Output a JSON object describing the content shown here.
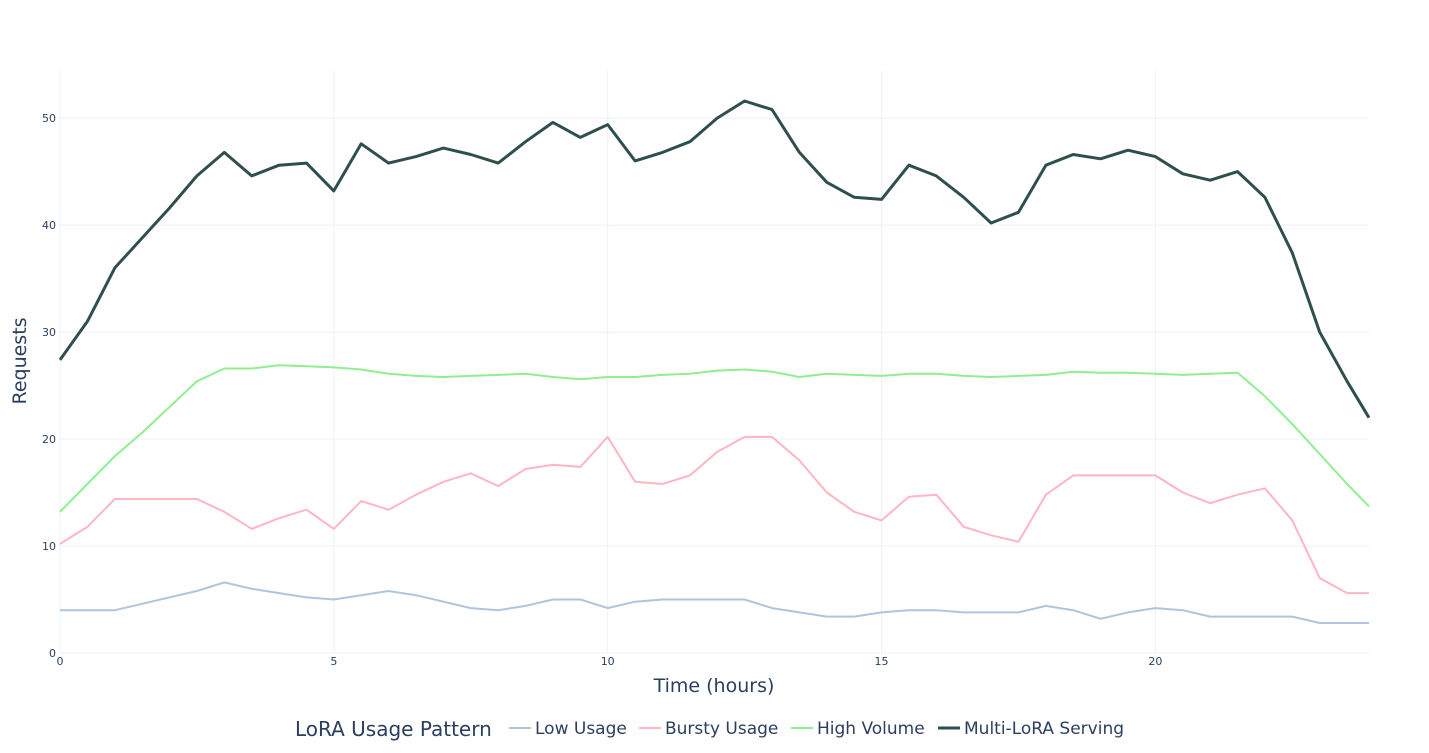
{
  "chart_data": {
    "type": "line",
    "xlabel": "Time (hours)",
    "ylabel": "Requests",
    "xlim": [
      0,
      23.9
    ],
    "ylim": [
      0,
      54.5
    ],
    "x_ticks": [
      0,
      5,
      10,
      15,
      20
    ],
    "y_ticks": [
      0,
      10,
      20,
      30,
      40,
      50
    ],
    "grid": true,
    "legend": {
      "title": "LoRA Usage Pattern",
      "position": "bottom"
    },
    "x": [
      0,
      0.5,
      1,
      1.5,
      2,
      2.5,
      3,
      3.5,
      4,
      4.5,
      5,
      5.5,
      6,
      6.5,
      7,
      7.5,
      8,
      8.5,
      9,
      9.5,
      10,
      10.5,
      11,
      11.5,
      12,
      12.5,
      13,
      13.5,
      14,
      14.5,
      15,
      15.5,
      16,
      16.5,
      17,
      17.5,
      18,
      18.5,
      19,
      19.5,
      20,
      20.5,
      21,
      21.5,
      22,
      22.5,
      23,
      23.5,
      23.9
    ],
    "series": [
      {
        "name": "Low Usage",
        "color": "#b0c4de",
        "values": [
          4,
          4,
          4,
          4.6,
          5.2,
          5.8,
          6.6,
          6,
          5.6,
          5.2,
          5,
          5.4,
          5.8,
          5.4,
          4.8,
          4.2,
          4,
          4.4,
          5,
          5,
          4.2,
          4.8,
          5,
          5,
          5,
          5,
          4.2,
          3.8,
          3.4,
          3.4,
          3.8,
          4,
          4,
          3.8,
          3.8,
          3.8,
          4.4,
          4,
          3.2,
          3.8,
          4.2,
          4,
          3.4,
          3.4,
          3.4,
          3.4,
          2.8,
          2.8,
          2.8
        ]
      },
      {
        "name": "Bursty Usage",
        "color": "#ffb6c1",
        "values": [
          10.2,
          11.8,
          14.4,
          14.4,
          14.4,
          14.4,
          13.2,
          11.6,
          12.6,
          13.4,
          11.6,
          14.2,
          13.4,
          14.8,
          16,
          16.8,
          15.6,
          17.2,
          17.6,
          17.4,
          20.2,
          16,
          15.8,
          16.6,
          18.8,
          20.2,
          20.2,
          18,
          15,
          13.2,
          12.4,
          14.6,
          14.8,
          11.8,
          11,
          10.4,
          14.8,
          16.6,
          16.6,
          16.6,
          16.6,
          15,
          14,
          14.8,
          15.4,
          12.4,
          7,
          5.6,
          5.6
        ]
      },
      {
        "name": "High Volume",
        "color": "#90ee90",
        "values": [
          13.2,
          15.8,
          18.4,
          20.6,
          23,
          25.4,
          26.6,
          26.6,
          26.9,
          26.8,
          26.7,
          26.5,
          26.1,
          25.9,
          25.8,
          25.9,
          26,
          26.1,
          25.8,
          25.6,
          25.8,
          25.8,
          26,
          26.1,
          26.4,
          26.5,
          26.3,
          25.8,
          26.1,
          26,
          25.9,
          26.1,
          26.1,
          25.9,
          25.8,
          25.9,
          26,
          26.3,
          26.2,
          26.2,
          26.1,
          26,
          26.1,
          26.2,
          24,
          21.4,
          18.6,
          15.8,
          13.7
        ]
      },
      {
        "name": "Multi-LoRA Serving",
        "color": "#2f4f4f",
        "values": [
          27.4,
          31,
          36,
          38.8,
          41.6,
          44.6,
          46.8,
          44.6,
          45.6,
          45.8,
          43.2,
          47.6,
          45.8,
          46.4,
          47.2,
          46.6,
          45.8,
          47.8,
          49.6,
          48.2,
          49.4,
          46,
          46.8,
          47.8,
          50,
          51.6,
          50.8,
          46.8,
          44,
          42.6,
          42.4,
          45.6,
          44.6,
          42.6,
          40.2,
          41.2,
          45.6,
          46.6,
          46.2,
          47,
          46.4,
          44.8,
          44.2,
          45,
          42.6,
          37.4,
          30,
          25.4,
          22
        ]
      }
    ]
  }
}
